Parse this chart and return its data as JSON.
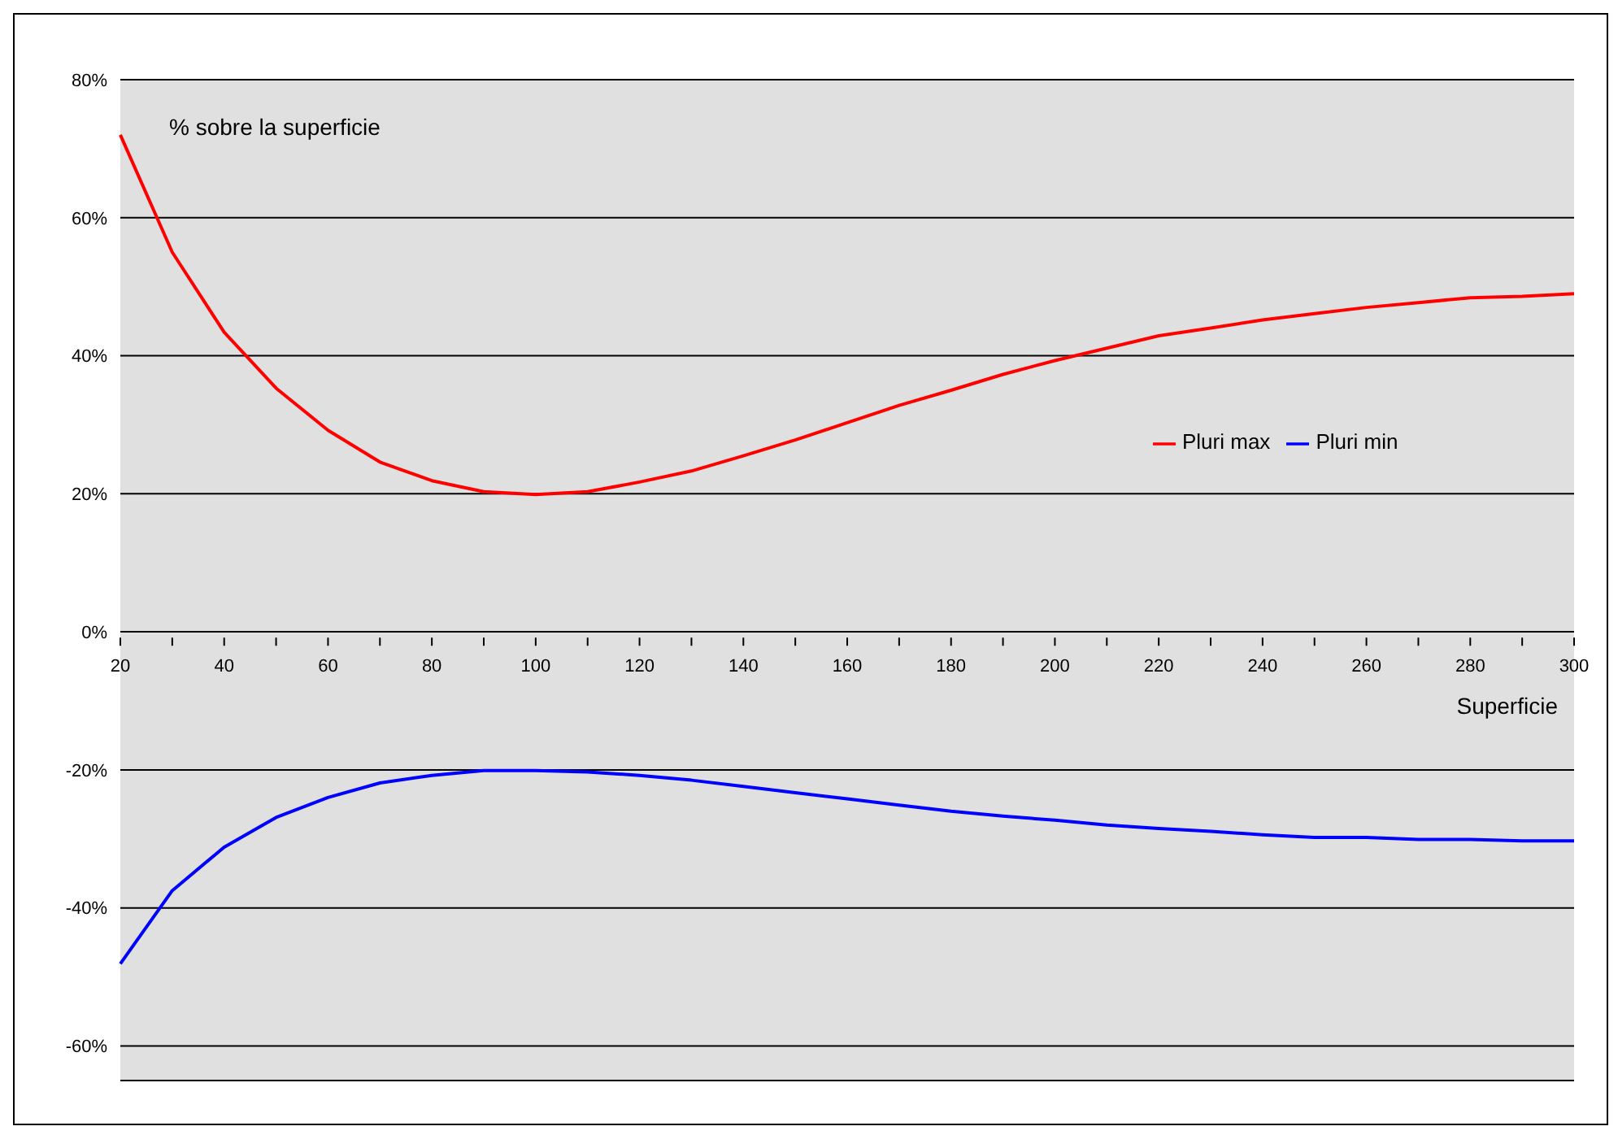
{
  "chart_data": {
    "type": "line",
    "ylabel": "% sobre la superficie",
    "xlabel": "Superficie",
    "categories": [
      "20",
      null,
      "40",
      null,
      "60",
      null,
      "80",
      null,
      "100",
      null,
      "120",
      null,
      "140",
      null,
      "160",
      null,
      "180",
      null,
      "200",
      null,
      "220",
      null,
      "240",
      null,
      "260",
      null,
      "280",
      null,
      "300"
    ],
    "series": [
      {
        "name": "Pluri max",
        "color": "#ff0000",
        "values": [
          72,
          55,
          43.4,
          35.3,
          29.2,
          24.6,
          21.9,
          20.3,
          19.9,
          20.3,
          21.7,
          23.3,
          25.5,
          27.8,
          30.3,
          32.8,
          35,
          37.3,
          39.3,
          41.1,
          42.9,
          44,
          45.2,
          46.1,
          47,
          47.7,
          48.4,
          48.6,
          49
        ]
      },
      {
        "name": "Pluri min",
        "color": "#0000ff",
        "values": [
          -48.1,
          -37.5,
          -31.2,
          -26.9,
          -24,
          -21.9,
          -20.8,
          -20.1,
          -20.1,
          -20.3,
          -20.8,
          -21.5,
          -22.4,
          -23.3,
          -24.2,
          -25.1,
          -26,
          -26.7,
          -27.3,
          -28,
          -28.5,
          -28.9,
          -29.4,
          -29.8,
          -29.8,
          -30.1,
          -30.1,
          -30.3,
          -30.3
        ]
      }
    ],
    "ylim": [
      -65,
      80
    ],
    "yticks": [
      {
        "value": -60,
        "label": "-60%"
      },
      {
        "value": -40,
        "label": "-40%"
      },
      {
        "value": -20,
        "label": "-20%"
      },
      {
        "value": 0,
        "label": "0%"
      },
      {
        "value": 20,
        "label": "20%"
      },
      {
        "value": 40,
        "label": "40%"
      },
      {
        "value": 60,
        "label": "60%"
      },
      {
        "value": 80,
        "label": "80%"
      }
    ],
    "grid": "y",
    "legend": "right",
    "marker": "none",
    "line_style": "solid"
  }
}
